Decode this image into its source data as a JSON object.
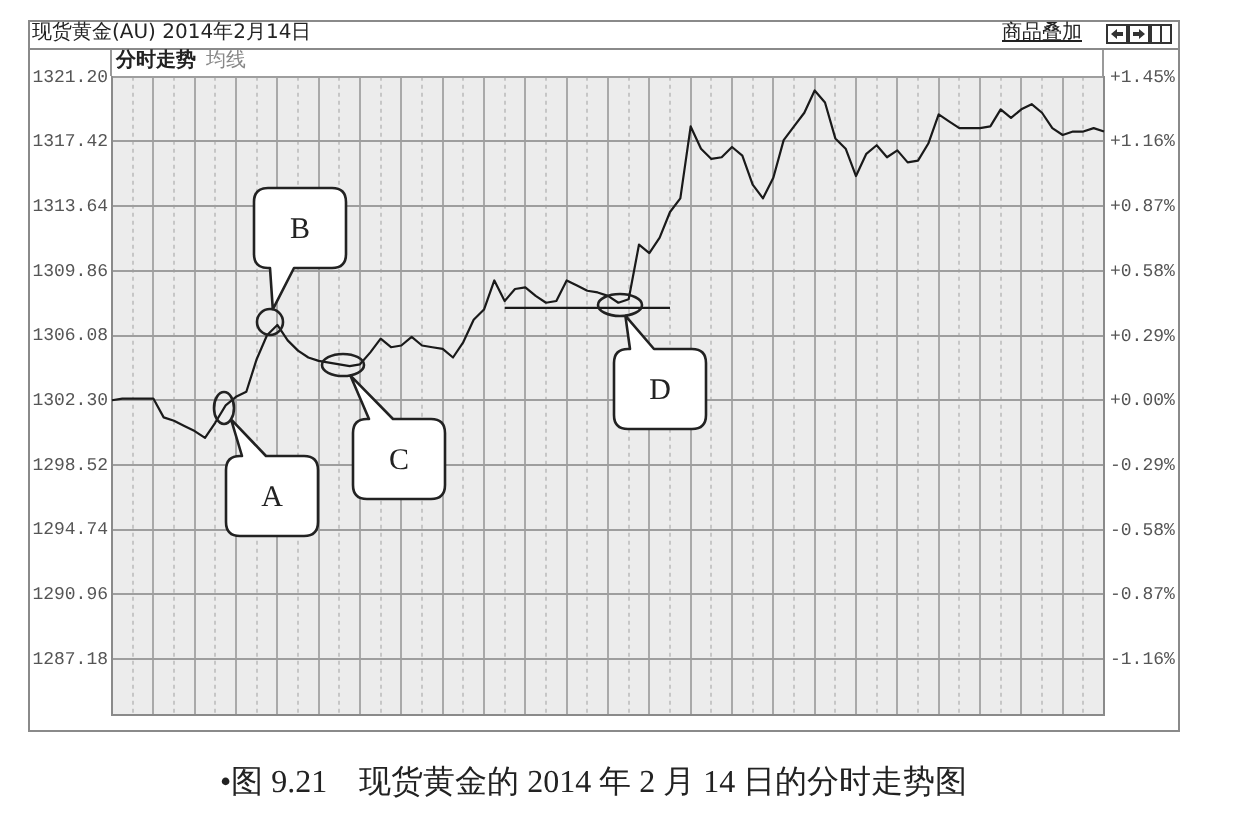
{
  "chart_data": {
    "type": "line",
    "title": "现货黄金(AU) 2014年2月14日",
    "annotations": [
      "A",
      "B",
      "C",
      "D",
      "商品叠加",
      "分时走势",
      "均线",
      "•图 9.21　现货黄金的 2014 年 2 月 14 日的分时走势图"
    ],
    "categories": [
      null,
      null,
      null,
      null,
      null,
      null,
      null,
      null,
      null,
      null,
      null,
      null,
      null,
      null,
      null,
      null,
      null,
      null,
      null,
      null,
      null,
      null,
      null,
      null,
      null,
      null,
      null,
      null,
      null,
      null,
      null,
      null,
      null,
      null,
      null,
      null,
      null,
      null,
      null,
      null,
      null,
      null,
      null,
      null,
      null,
      null,
      null,
      null,
      null,
      null,
      null,
      null,
      null,
      null,
      null,
      null,
      null,
      null,
      null,
      null,
      null,
      null,
      null,
      null,
      null,
      null,
      null,
      null,
      null,
      null,
      null,
      null,
      null,
      null,
      null,
      null,
      null,
      null,
      null,
      null,
      null,
      null,
      null,
      null,
      null,
      null,
      null,
      null,
      null,
      null,
      null,
      null,
      null,
      null,
      null,
      null,
      null
    ],
    "series": [
      {
        "color": "#1a1a1a",
        "values": [
          1302.3,
          1302.4,
          1302.4,
          1302.4,
          1302.4,
          1301.3,
          1301.1,
          1300.8,
          1300.5,
          1300.1,
          1301.0,
          1302.0,
          1302.5,
          1302.8,
          1304.7,
          1306.1,
          1306.7,
          1305.8,
          1305.2,
          1304.8,
          1304.6,
          1304.5,
          1304.4,
          1304.3,
          1304.4,
          1305.1,
          1305.9,
          1305.4,
          1305.5,
          1306.0,
          1305.5,
          1305.4,
          1305.3,
          1304.8,
          1305.7,
          1307.0,
          1307.6,
          1309.3,
          1308.1,
          1308.8,
          1308.9,
          1308.4,
          1308.0,
          1308.1,
          1309.3,
          1309.0,
          1308.7,
          1308.6,
          1308.4,
          1308.0,
          1308.2,
          1311.4,
          1310.9,
          1311.8,
          1313.3,
          1314.1,
          1318.3,
          1317.0,
          1316.4,
          1316.5,
          1317.1,
          1316.6,
          1314.9,
          1314.1,
          1315.3,
          1317.5,
          1318.3,
          1319.1,
          1320.4,
          1319.7,
          1317.6,
          1317.0,
          1315.4,
          1316.7,
          1317.2,
          1316.5,
          1316.9,
          1316.2,
          1316.3,
          1317.3,
          1319.0,
          1318.6,
          1318.2,
          1318.2,
          1318.2,
          1318.3,
          1319.3,
          1318.8,
          1319.3,
          1319.6,
          1319.1,
          1318.2,
          1317.8,
          1318.0,
          1318.0,
          1318.2,
          1318.0
        ]
      },
      {
        "color": "#1a1a1a",
        "values": [
          null,
          null,
          null,
          null,
          null,
          null,
          null,
          null,
          null,
          null,
          null,
          null,
          null,
          null,
          null,
          null,
          null,
          null,
          null,
          null,
          null,
          null,
          null,
          null,
          null,
          null,
          null,
          null,
          null,
          null,
          null,
          null,
          null,
          null,
          null,
          null,
          null,
          null,
          1307.7,
          1307.7,
          1307.7,
          1307.7,
          1307.7,
          1307.7,
          1307.7,
          1307.7,
          1307.7,
          1307.7,
          1307.7,
          1307.7,
          1307.7,
          1307.7,
          1307.7,
          1307.7,
          1307.7,
          null,
          null,
          null,
          null,
          null,
          null,
          null,
          null,
          null,
          null,
          null,
          null,
          null,
          null,
          null,
          null,
          null,
          null,
          null,
          null,
          null,
          null,
          null,
          null,
          null,
          null,
          null,
          null,
          null,
          null,
          null,
          null,
          null,
          null,
          null,
          null,
          null,
          null,
          null,
          null,
          null,
          null
        ]
      }
    ],
    "ylim": [
      1283.9,
      1321.2
    ],
    "yticks": [
      {
        "value": 1321.2,
        "label": "1321.20"
      },
      1317.42,
      1313.64,
      1309.86,
      1306.08,
      {
        "value": 1302.3,
        "label": "1302.30"
      },
      1298.52,
      1294.74,
      1290.96,
      1287.18
    ],
    "y2lim": [
      -1.41,
      1.45
    ],
    "y2ticks": [
      {
        "value": 1.45,
        "label": "+1.45%"
      },
      {
        "value": 1.16,
        "label": "+1.16%"
      },
      {
        "value": 0.87,
        "label": "+0.87%"
      },
      {
        "value": 0.58,
        "label": "+0.58%"
      },
      {
        "value": 0.29,
        "label": "+0.29%"
      },
      {
        "value": 0,
        "label": "+0.00%"
      },
      {
        "value": -0.29,
        "label": "-0.29%"
      },
      {
        "value": -0.58,
        "label": "-0.58%"
      },
      {
        "value": -0.87,
        "label": "-0.87%"
      },
      {
        "value": -1.16,
        "label": "-1.16%"
      }
    ],
    "grid": true,
    "marker": "none",
    "tick_labels": "y"
  }
}
